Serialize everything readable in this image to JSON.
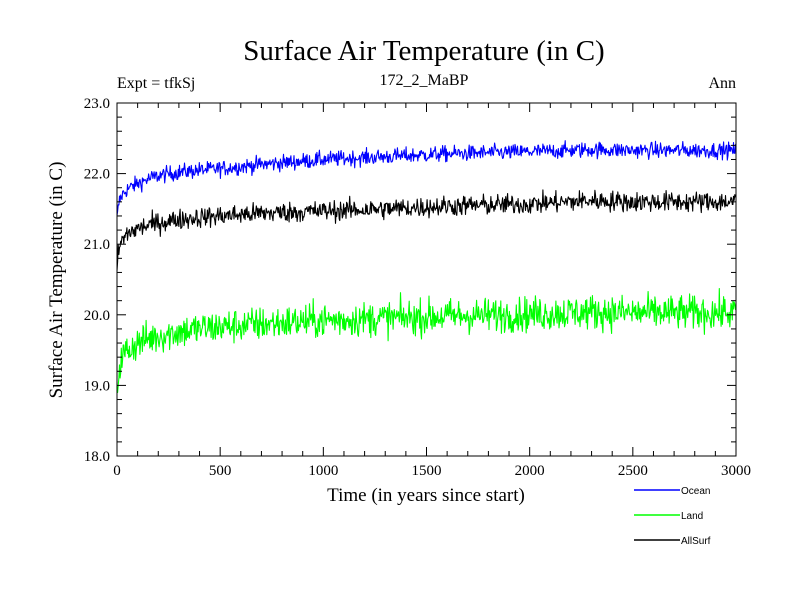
{
  "chart_data": {
    "type": "line",
    "title": "Surface Air Temperature (in C)",
    "subtitle": "172_2_MaBP",
    "expt_label": "Expt = tfkSj",
    "period_label": "Ann",
    "xlabel": "Time (in years since start)",
    "ylabel": "Surface Air Temperature (in C)",
    "xlim": [
      0,
      3000
    ],
    "ylim": [
      18.0,
      23.0
    ],
    "x_ticks": [
      0,
      500,
      1000,
      1500,
      2000,
      2500,
      3000
    ],
    "x_tick_labels": [
      "0",
      "500",
      "1000",
      "1500",
      "2000",
      "2500",
      "3000"
    ],
    "y_ticks": [
      18.0,
      19.0,
      20.0,
      21.0,
      22.0,
      23.0
    ],
    "y_tick_labels": [
      "18.0",
      "19.0",
      "20.0",
      "21.0",
      "22.0",
      "23.0"
    ],
    "grid": false,
    "legend_position": "bottom-right",
    "series": [
      {
        "name": "Ocean",
        "color": "#0000ff",
        "x": [
          0,
          10,
          25,
          50,
          100,
          150,
          200,
          300,
          400,
          500,
          700,
          1000,
          1300,
          1600,
          2000,
          2300,
          2500,
          2700,
          3000
        ],
        "values": [
          21.35,
          21.6,
          21.7,
          21.78,
          21.86,
          21.92,
          21.97,
          22.02,
          22.05,
          22.07,
          22.13,
          22.2,
          22.24,
          22.28,
          22.31,
          22.34,
          22.33,
          22.33,
          22.33
        ],
        "noise": 0.1
      },
      {
        "name": "Land",
        "color": "#00ff00",
        "x": [
          0,
          10,
          25,
          50,
          100,
          150,
          200,
          300,
          400,
          500,
          700,
          1000,
          1300,
          1600,
          2000,
          2300,
          2500,
          2700,
          3000
        ],
        "values": [
          18.9,
          19.25,
          19.4,
          19.5,
          19.6,
          19.66,
          19.7,
          19.76,
          19.8,
          19.83,
          19.87,
          19.92,
          19.95,
          19.98,
          20.01,
          20.04,
          20.03,
          20.03,
          20.03
        ],
        "noise": 0.22
      },
      {
        "name": "AllSurf",
        "color": "#000000",
        "x": [
          0,
          10,
          25,
          50,
          100,
          150,
          200,
          300,
          400,
          500,
          700,
          1000,
          1300,
          1600,
          2000,
          2300,
          2500,
          2700,
          3000
        ],
        "values": [
          20.65,
          20.95,
          21.05,
          21.15,
          21.22,
          21.27,
          21.3,
          21.35,
          21.38,
          21.4,
          21.44,
          21.47,
          21.5,
          21.54,
          21.57,
          21.62,
          21.6,
          21.6,
          21.6
        ],
        "noise": 0.13
      }
    ]
  }
}
